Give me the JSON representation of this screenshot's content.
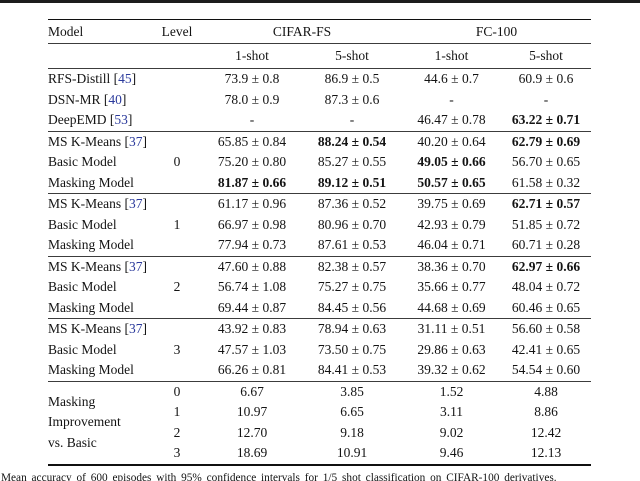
{
  "colors": {
    "citation_blue": "#2b3a9c",
    "rule_heavy": "#101010",
    "rule_light": "#3c3c3c"
  },
  "caption": {
    "clipped_text": "Mean accuracy of 600 episodes with 95% confidence intervals for 1/5 shot classification on CIFAR-100 derivatives."
  },
  "table": {
    "citation": {
      "open": " [",
      "close": "]"
    },
    "headers": {
      "model": "Model",
      "level": "Level",
      "group_cifar": "CIFAR-FS",
      "group_fc": "FC-100",
      "sub": [
        "1-shot",
        "5-shot",
        "1-shot",
        "5-shot"
      ]
    },
    "sections": [
      {
        "rows": [
          {
            "name": "RFS-Distill",
            "cite": "45",
            "level": "",
            "cells": [
              {
                "v": "73.9 ± 0.8",
                "b": false
              },
              {
                "v": "86.9 ± 0.5",
                "b": false
              },
              {
                "v": "44.6 ± 0.7",
                "b": false
              },
              {
                "v": "60.9 ± 0.6",
                "b": false
              }
            ]
          },
          {
            "name": "DSN-MR",
            "cite": "40",
            "level": "",
            "cells": [
              {
                "v": "78.0 ± 0.9",
                "b": false
              },
              {
                "v": "87.3 ± 0.6",
                "b": false
              },
              {
                "v": "-",
                "b": false
              },
              {
                "v": "-",
                "b": false
              }
            ]
          },
          {
            "name": "DeepEMD",
            "cite": "53",
            "level": "",
            "cells": [
              {
                "v": "-",
                "b": false
              },
              {
                "v": "-",
                "b": false
              },
              {
                "v": "46.47 ± 0.78",
                "b": false
              },
              {
                "v": "63.22 ± 0.71",
                "b": true
              }
            ]
          }
        ]
      },
      {
        "rows": [
          {
            "name": "MS K-Means",
            "cite": "37",
            "level": "",
            "cells": [
              {
                "v": "65.85 ± 0.84",
                "b": false
              },
              {
                "v": "88.24 ± 0.54",
                "b": true
              },
              {
                "v": "40.20 ± 0.64",
                "b": false
              },
              {
                "v": "62.79 ± 0.69",
                "b": true
              }
            ]
          },
          {
            "name": "Basic Model",
            "cite": "",
            "level": "0",
            "cells": [
              {
                "v": "75.20 ± 0.80",
                "b": false
              },
              {
                "v": "85.27 ± 0.55",
                "b": false
              },
              {
                "v": "49.05 ± 0.66",
                "b": true
              },
              {
                "v": "56.70 ± 0.65",
                "b": false
              }
            ]
          },
          {
            "name": "Masking Model",
            "cite": "",
            "level": "",
            "cells": [
              {
                "v": "81.87 ± 0.66",
                "b": true
              },
              {
                "v": "89.12 ± 0.51",
                "b": true
              },
              {
                "v": "50.57 ± 0.65",
                "b": true
              },
              {
                "v": "61.58 ± 0.32",
                "b": false
              }
            ]
          }
        ]
      },
      {
        "rows": [
          {
            "name": "MS K-Means",
            "cite": "37",
            "level": "",
            "cells": [
              {
                "v": "61.17 ± 0.96",
                "b": false
              },
              {
                "v": "87.36 ± 0.52",
                "b": false
              },
              {
                "v": "39.75 ± 0.69",
                "b": false
              },
              {
                "v": "62.71 ± 0.57",
                "b": true
              }
            ]
          },
          {
            "name": "Basic Model",
            "cite": "",
            "level": "1",
            "cells": [
              {
                "v": "66.97 ± 0.98",
                "b": false
              },
              {
                "v": "80.96 ± 0.70",
                "b": false
              },
              {
                "v": "42.93 ± 0.79",
                "b": false
              },
              {
                "v": "51.85 ± 0.72",
                "b": false
              }
            ]
          },
          {
            "name": "Masking Model",
            "cite": "",
            "level": "",
            "cells": [
              {
                "v": "77.94 ± 0.73",
                "b": false
              },
              {
                "v": "87.61 ± 0.53",
                "b": false
              },
              {
                "v": "46.04 ± 0.71",
                "b": false
              },
              {
                "v": "60.71 ± 0.28",
                "b": false
              }
            ]
          }
        ]
      },
      {
        "rows": [
          {
            "name": "MS K-Means",
            "cite": "37",
            "level": "",
            "cells": [
              {
                "v": "47.60 ± 0.88",
                "b": false
              },
              {
                "v": "82.38 ± 0.57",
                "b": false
              },
              {
                "v": "38.36 ± 0.70",
                "b": false
              },
              {
                "v": "62.97 ± 0.66",
                "b": true
              }
            ]
          },
          {
            "name": "Basic Model",
            "cite": "",
            "level": "2",
            "cells": [
              {
                "v": "56.74 ± 1.08",
                "b": false
              },
              {
                "v": "75.27 ± 0.75",
                "b": false
              },
              {
                "v": "35.66 ± 0.77",
                "b": false
              },
              {
                "v": "48.04 ± 0.72",
                "b": false
              }
            ]
          },
          {
            "name": "Masking Model",
            "cite": "",
            "level": "",
            "cells": [
              {
                "v": "69.44 ± 0.87",
                "b": false
              },
              {
                "v": "84.45 ± 0.56",
                "b": false
              },
              {
                "v": "44.68 ± 0.69",
                "b": false
              },
              {
                "v": "60.46 ± 0.65",
                "b": false
              }
            ]
          }
        ]
      },
      {
        "rows": [
          {
            "name": "MS K-Means",
            "cite": "37",
            "level": "",
            "cells": [
              {
                "v": "43.92 ± 0.83",
                "b": false
              },
              {
                "v": "78.94 ± 0.63",
                "b": false
              },
              {
                "v": "31.11 ± 0.51",
                "b": false
              },
              {
                "v": "56.60 ± 0.58",
                "b": false
              }
            ]
          },
          {
            "name": "Basic Model",
            "cite": "",
            "level": "3",
            "cells": [
              {
                "v": "47.57 ± 1.03",
                "b": false
              },
              {
                "v": "73.50 ± 0.75",
                "b": false
              },
              {
                "v": "29.86 ± 0.63",
                "b": false
              },
              {
                "v": "42.41 ± 0.65",
                "b": false
              }
            ]
          },
          {
            "name": "Masking Model",
            "cite": "",
            "level": "",
            "cells": [
              {
                "v": "66.26 ± 0.81",
                "b": false
              },
              {
                "v": "84.41 ± 0.53",
                "b": false
              },
              {
                "v": "39.32 ± 0.62",
                "b": false
              },
              {
                "v": "54.54 ± 0.60",
                "b": false
              }
            ]
          }
        ]
      },
      {
        "label_lines": [
          "Masking",
          "Improvement",
          "vs. Basic"
        ],
        "rows": [
          {
            "name": "",
            "cite": "",
            "level": "0",
            "cells": [
              {
                "v": "6.67",
                "b": false
              },
              {
                "v": "3.85",
                "b": false
              },
              {
                "v": "1.52",
                "b": false
              },
              {
                "v": "4.88",
                "b": false
              }
            ]
          },
          {
            "name": "",
            "cite": "",
            "level": "1",
            "cells": [
              {
                "v": "10.97",
                "b": false
              },
              {
                "v": "6.65",
                "b": false
              },
              {
                "v": "3.11",
                "b": false
              },
              {
                "v": "8.86",
                "b": false
              }
            ]
          },
          {
            "name": "",
            "cite": "",
            "level": "2",
            "cells": [
              {
                "v": "12.70",
                "b": false
              },
              {
                "v": "9.18",
                "b": false
              },
              {
                "v": "9.02",
                "b": false
              },
              {
                "v": "12.42",
                "b": false
              }
            ]
          },
          {
            "name": "",
            "cite": "",
            "level": "3",
            "cells": [
              {
                "v": "18.69",
                "b": false
              },
              {
                "v": "10.91",
                "b": false
              },
              {
                "v": "9.46",
                "b": false
              },
              {
                "v": "12.13",
                "b": false
              }
            ]
          }
        ]
      }
    ]
  }
}
